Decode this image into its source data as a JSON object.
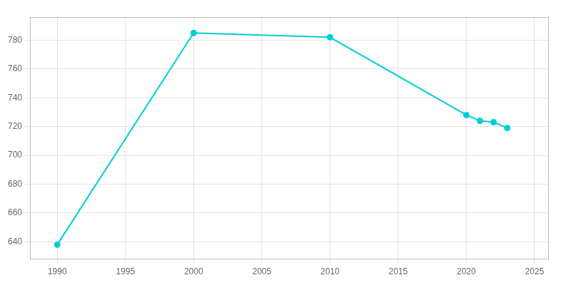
{
  "chart_data": {
    "type": "line",
    "x": [
      1990,
      2000,
      2010,
      2020,
      2021,
      2022,
      2023
    ],
    "values": [
      638,
      785,
      782,
      728,
      724,
      723,
      719
    ],
    "color": "#00CED1",
    "marker": "circle",
    "xlim": [
      1988,
      2026
    ],
    "ylim": [
      628,
      796
    ],
    "xticks": [
      1990,
      1995,
      2000,
      2005,
      2010,
      2015,
      2020,
      2025
    ],
    "yticks": [
      640,
      660,
      680,
      700,
      720,
      740,
      760,
      780
    ],
    "grid": true
  }
}
